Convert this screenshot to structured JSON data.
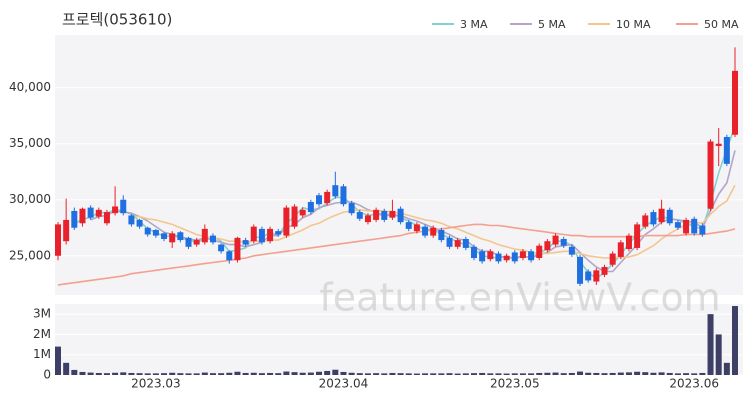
{
  "chart_data": [
    {
      "type": "candlestick",
      "title": "프로텍(053610)",
      "categories": [
        null,
        null,
        null,
        null,
        null,
        null,
        null,
        null,
        null,
        null,
        null,
        null,
        "2023.03",
        null,
        null,
        null,
        null,
        null,
        null,
        null,
        null,
        null,
        null,
        null,
        null,
        null,
        null,
        null,
        null,
        null,
        null,
        null,
        null,
        null,
        null,
        "2023.04",
        null,
        null,
        null,
        null,
        null,
        null,
        null,
        null,
        null,
        null,
        null,
        null,
        null,
        null,
        null,
        null,
        null,
        null,
        null,
        null,
        "2023.05",
        null,
        null,
        null,
        null,
        null,
        null,
        null,
        null,
        null,
        null,
        null,
        null,
        null,
        null,
        null,
        null,
        null,
        null,
        null,
        null,
        null,
        "2023.06",
        null,
        null,
        null,
        null,
        null
      ],
      "open": [
        25000,
        26300,
        29000,
        27900,
        29300,
        28500,
        27900,
        28800,
        30000,
        28600,
        28200,
        27500,
        27300,
        27000,
        26200,
        27100,
        26600,
        26000,
        26200,
        26800,
        26000,
        25400,
        24600,
        26400,
        26300,
        27400,
        26300,
        27200,
        26800,
        27600,
        28600,
        29800,
        30400,
        29700,
        31300,
        31200,
        29700,
        28900,
        28000,
        28200,
        29000,
        28400,
        29200,
        28000,
        27200,
        27600,
        26800,
        27300,
        26600,
        25800,
        26500,
        25800,
        25400,
        24700,
        25200,
        24600,
        25300,
        24800,
        25400,
        24800,
        25500,
        26000,
        26500,
        25800,
        24900,
        23600,
        22700,
        23300,
        24200,
        24900,
        25600,
        25700,
        27600,
        28900,
        28000,
        29100,
        28000,
        27000,
        28300,
        27700,
        29200,
        34800,
        35600,
        35800
      ],
      "high": [
        28000,
        30100,
        29300,
        29300,
        29500,
        29300,
        29100,
        31200,
        30400,
        28700,
        28300,
        27600,
        27400,
        27100,
        27200,
        27200,
        26700,
        26600,
        27800,
        27000,
        26100,
        25500,
        26700,
        26600,
        27800,
        27600,
        27600,
        27400,
        29500,
        29600,
        29300,
        30000,
        30600,
        30900,
        32500,
        31400,
        29900,
        29100,
        28800,
        29300,
        29200,
        30000,
        29400,
        28200,
        28000,
        27800,
        27700,
        27500,
        26800,
        26600,
        26700,
        26000,
        25600,
        25600,
        25400,
        25200,
        25500,
        25600,
        25600,
        26100,
        26500,
        27000,
        26700,
        26000,
        25100,
        23800,
        23900,
        24200,
        25400,
        26400,
        27000,
        28000,
        28800,
        29100,
        30000,
        29300,
        28200,
        28400,
        28500,
        27900,
        35400,
        36400,
        35800,
        43600
      ],
      "low": [
        24600,
        26000,
        27300,
        27600,
        28200,
        28300,
        27700,
        28600,
        28600,
        27600,
        27400,
        26700,
        26600,
        26300,
        25700,
        26200,
        25600,
        25800,
        26000,
        26000,
        25200,
        24300,
        24400,
        25800,
        26100,
        26000,
        26100,
        26700,
        26600,
        27400,
        28400,
        28700,
        29400,
        29500,
        30100,
        29400,
        28600,
        28100,
        27800,
        28000,
        28000,
        28200,
        27800,
        27200,
        27000,
        26600,
        26600,
        26200,
        25600,
        25600,
        25500,
        24600,
        24300,
        24500,
        24300,
        24400,
        24300,
        24600,
        24400,
        24600,
        25300,
        25800,
        25700,
        24900,
        22300,
        22600,
        22400,
        23100,
        24000,
        24700,
        25400,
        25500,
        27400,
        27600,
        27800,
        27700,
        27300,
        26800,
        26800,
        26700,
        29000,
        33000,
        33000,
        35600
      ],
      "close": [
        27800,
        28200,
        27500,
        29200,
        28400,
        29100,
        28900,
        29400,
        28800,
        27800,
        27600,
        26900,
        26800,
        26500,
        27000,
        26400,
        25800,
        26400,
        27400,
        26200,
        25400,
        24600,
        26600,
        26000,
        27600,
        26200,
        27400,
        26900,
        29300,
        29400,
        29100,
        28900,
        29600,
        30700,
        30300,
        29600,
        28800,
        28300,
        28600,
        29100,
        28200,
        29000,
        28000,
        27400,
        27800,
        26800,
        27500,
        26400,
        25800,
        26400,
        25700,
        24800,
        24500,
        25400,
        24500,
        25000,
        24500,
        25400,
        24600,
        25900,
        26300,
        26800,
        25900,
        25100,
        22500,
        22800,
        23700,
        24000,
        25200,
        26200,
        26800,
        27800,
        28600,
        27800,
        29200,
        27900,
        27500,
        28200,
        27000,
        26900,
        35200,
        35000,
        33200,
        41500
      ],
      "up_color": "#e8212b",
      "down_color": "#1f6fe0",
      "series": [
        {
          "name": "3 MA",
          "color": "#7fd3cf",
          "values": [
            null,
            null,
            27800,
            28300,
            28400,
            28900,
            28800,
            29100,
            29000,
            28700,
            28100,
            27400,
            27100,
            26700,
            26800,
            26600,
            26400,
            26200,
            26500,
            26700,
            26300,
            25400,
            25500,
            25700,
            26700,
            26600,
            27100,
            26800,
            27900,
            28500,
            29300,
            29100,
            29200,
            29700,
            30200,
            30200,
            29600,
            28900,
            28600,
            28700,
            28600,
            28800,
            28400,
            28100,
            27700,
            27300,
            27400,
            26900,
            26600,
            26200,
            26000,
            25600,
            25000,
            24900,
            24800,
            25000,
            24700,
            25000,
            24800,
            25300,
            25600,
            26300,
            26300,
            25900,
            24500,
            23500,
            23000,
            23500,
            24300,
            25100,
            26100,
            26900,
            27700,
            28100,
            28500,
            28300,
            28200,
            27900,
            27600,
            27400,
            29700,
            32400,
            34500,
            36600
          ]
        },
        {
          "name": "5 MA",
          "color": "#b3a5c8",
          "values": [
            null,
            null,
            null,
            null,
            28200,
            28500,
            28600,
            29000,
            28900,
            28800,
            28500,
            28100,
            27600,
            27100,
            26900,
            26700,
            26500,
            26400,
            26600,
            26400,
            26200,
            26000,
            26000,
            25800,
            26000,
            26200,
            26800,
            26800,
            27500,
            27800,
            28400,
            28700,
            29300,
            29500,
            29700,
            29800,
            29800,
            29500,
            29100,
            28900,
            28600,
            28600,
            28600,
            28300,
            28100,
            27800,
            27500,
            27200,
            26900,
            26500,
            26400,
            25800,
            25400,
            25400,
            25000,
            24800,
            24800,
            25000,
            24800,
            25100,
            25300,
            25800,
            25900,
            26000,
            25300,
            24600,
            24000,
            23600,
            23600,
            24400,
            25200,
            26000,
            26900,
            27400,
            28000,
            28300,
            28200,
            28100,
            28000,
            27500,
            29000,
            30500,
            31500,
            34400
          ]
        },
        {
          "name": "10 MA",
          "color": "#f3c690",
          "values": [
            null,
            null,
            null,
            null,
            null,
            null,
            null,
            null,
            null,
            28500,
            28500,
            28300,
            28200,
            28000,
            27800,
            27500,
            27200,
            26900,
            26700,
            26600,
            26500,
            26300,
            26300,
            26200,
            26300,
            26300,
            26400,
            26400,
            26700,
            27000,
            27300,
            27700,
            27900,
            28300,
            28600,
            28900,
            29000,
            29100,
            29000,
            29000,
            29000,
            28900,
            28800,
            28600,
            28400,
            28200,
            28100,
            27900,
            27600,
            27400,
            27100,
            26800,
            26500,
            26300,
            26000,
            25800,
            25600,
            25500,
            25300,
            25200,
            25200,
            25300,
            25400,
            25400,
            25200,
            25000,
            24900,
            24800,
            24800,
            24900,
            24900,
            25100,
            25500,
            25900,
            26500,
            27000,
            27400,
            27800,
            28000,
            27900,
            28700,
            29400,
            29900,
            31300
          ]
        },
        {
          "name": "50 MA",
          "color": "#f4a08e",
          "values": [
            22400,
            22500,
            22600,
            22700,
            22800,
            22900,
            23000,
            23100,
            23200,
            23400,
            23500,
            23600,
            23700,
            23800,
            23900,
            24000,
            24100,
            24200,
            24300,
            24400,
            24500,
            24600,
            24700,
            24800,
            25000,
            25100,
            25200,
            25300,
            25400,
            25500,
            25600,
            25700,
            25800,
            25900,
            26000,
            26100,
            26200,
            26300,
            26400,
            26500,
            26600,
            26700,
            26800,
            27000,
            27100,
            27200,
            27300,
            27400,
            27500,
            27600,
            27700,
            27800,
            27800,
            27700,
            27700,
            27600,
            27500,
            27400,
            27300,
            27200,
            27100,
            27000,
            26900,
            26800,
            26800,
            26700,
            26700,
            26700,
            26700,
            26700,
            26700,
            26700,
            26800,
            26800,
            26800,
            26800,
            26800,
            26900,
            26900,
            26900,
            27000,
            27100,
            27200,
            27400
          ]
        }
      ],
      "ylim": [
        21500,
        44700
      ],
      "yticks": [
        {
          "value": 25000,
          "label": "25,000"
        },
        {
          "value": 30000,
          "label": "30,000"
        },
        {
          "value": 35000,
          "label": "35,000"
        },
        {
          "value": 40000,
          "label": "40,000"
        }
      ],
      "grid": true,
      "legend": "top-right"
    },
    {
      "type": "bar",
      "color": "#3d3f66",
      "values": [
        1400000,
        600000,
        250000,
        150000,
        120000,
        100000,
        90000,
        110000,
        130000,
        100000,
        90000,
        80000,
        80000,
        90000,
        110000,
        90000,
        80000,
        80000,
        120000,
        90000,
        90000,
        110000,
        160000,
        100000,
        110000,
        90000,
        100000,
        90000,
        170000,
        140000,
        110000,
        120000,
        160000,
        200000,
        260000,
        150000,
        110000,
        90000,
        80000,
        90000,
        80000,
        100000,
        90000,
        80000,
        70000,
        80000,
        80000,
        80000,
        90000,
        70000,
        80000,
        90000,
        100000,
        80000,
        80000,
        70000,
        80000,
        80000,
        80000,
        100000,
        110000,
        120000,
        90000,
        100000,
        170000,
        110000,
        100000,
        90000,
        100000,
        120000,
        130000,
        160000,
        140000,
        110000,
        130000,
        100000,
        80000,
        90000,
        80000,
        100000,
        3000000,
        2000000,
        600000,
        3400000
      ],
      "ylim": [
        0,
        3500000
      ],
      "yticks": [
        0,
        {
          "value": 1000000,
          "label": "1M"
        },
        {
          "value": 2000000,
          "label": "2M"
        },
        {
          "value": 3000000,
          "label": "3M"
        }
      ],
      "grid": true
    }
  ],
  "watermark": "feature.enViewV.com"
}
